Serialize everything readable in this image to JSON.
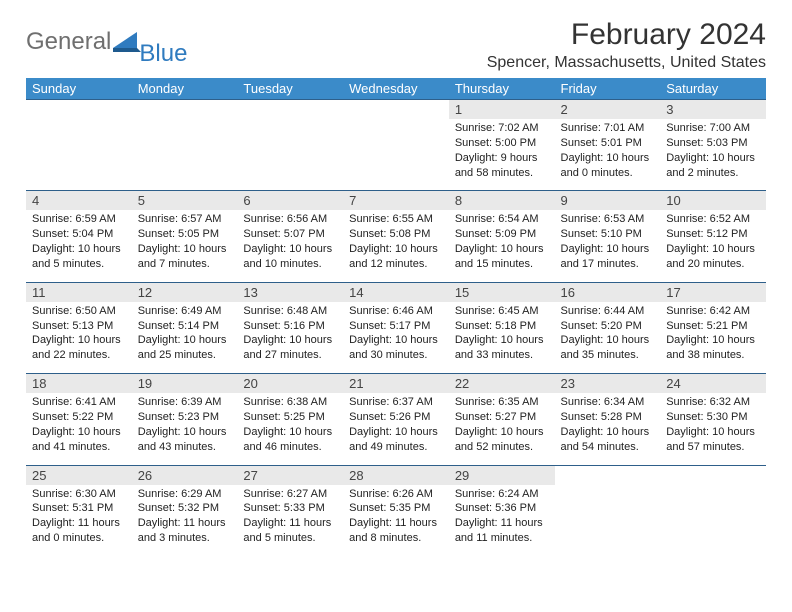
{
  "logo": {
    "part1": "General",
    "part2": "Blue"
  },
  "title": "February 2024",
  "location": "Spencer, Massachusetts, United States",
  "colors": {
    "header_bg": "#3b8bc9",
    "header_text": "#ffffff",
    "daynum_bg": "#e9e9e9",
    "border": "#2e5f8a",
    "logo_gray": "#6f6f6f",
    "logo_blue": "#2f7bbf"
  },
  "daysOfWeek": [
    "Sunday",
    "Monday",
    "Tuesday",
    "Wednesday",
    "Thursday",
    "Friday",
    "Saturday"
  ],
  "weeks": [
    [
      null,
      null,
      null,
      null,
      {
        "n": "1",
        "sunrise": "7:02 AM",
        "sunset": "5:00 PM",
        "daylight": "9 hours and 58 minutes."
      },
      {
        "n": "2",
        "sunrise": "7:01 AM",
        "sunset": "5:01 PM",
        "daylight": "10 hours and 0 minutes."
      },
      {
        "n": "3",
        "sunrise": "7:00 AM",
        "sunset": "5:03 PM",
        "daylight": "10 hours and 2 minutes."
      }
    ],
    [
      {
        "n": "4",
        "sunrise": "6:59 AM",
        "sunset": "5:04 PM",
        "daylight": "10 hours and 5 minutes."
      },
      {
        "n": "5",
        "sunrise": "6:57 AM",
        "sunset": "5:05 PM",
        "daylight": "10 hours and 7 minutes."
      },
      {
        "n": "6",
        "sunrise": "6:56 AM",
        "sunset": "5:07 PM",
        "daylight": "10 hours and 10 minutes."
      },
      {
        "n": "7",
        "sunrise": "6:55 AM",
        "sunset": "5:08 PM",
        "daylight": "10 hours and 12 minutes."
      },
      {
        "n": "8",
        "sunrise": "6:54 AM",
        "sunset": "5:09 PM",
        "daylight": "10 hours and 15 minutes."
      },
      {
        "n": "9",
        "sunrise": "6:53 AM",
        "sunset": "5:10 PM",
        "daylight": "10 hours and 17 minutes."
      },
      {
        "n": "10",
        "sunrise": "6:52 AM",
        "sunset": "5:12 PM",
        "daylight": "10 hours and 20 minutes."
      }
    ],
    [
      {
        "n": "11",
        "sunrise": "6:50 AM",
        "sunset": "5:13 PM",
        "daylight": "10 hours and 22 minutes."
      },
      {
        "n": "12",
        "sunrise": "6:49 AM",
        "sunset": "5:14 PM",
        "daylight": "10 hours and 25 minutes."
      },
      {
        "n": "13",
        "sunrise": "6:48 AM",
        "sunset": "5:16 PM",
        "daylight": "10 hours and 27 minutes."
      },
      {
        "n": "14",
        "sunrise": "6:46 AM",
        "sunset": "5:17 PM",
        "daylight": "10 hours and 30 minutes."
      },
      {
        "n": "15",
        "sunrise": "6:45 AM",
        "sunset": "5:18 PM",
        "daylight": "10 hours and 33 minutes."
      },
      {
        "n": "16",
        "sunrise": "6:44 AM",
        "sunset": "5:20 PM",
        "daylight": "10 hours and 35 minutes."
      },
      {
        "n": "17",
        "sunrise": "6:42 AM",
        "sunset": "5:21 PM",
        "daylight": "10 hours and 38 minutes."
      }
    ],
    [
      {
        "n": "18",
        "sunrise": "6:41 AM",
        "sunset": "5:22 PM",
        "daylight": "10 hours and 41 minutes."
      },
      {
        "n": "19",
        "sunrise": "6:39 AM",
        "sunset": "5:23 PM",
        "daylight": "10 hours and 43 minutes."
      },
      {
        "n": "20",
        "sunrise": "6:38 AM",
        "sunset": "5:25 PM",
        "daylight": "10 hours and 46 minutes."
      },
      {
        "n": "21",
        "sunrise": "6:37 AM",
        "sunset": "5:26 PM",
        "daylight": "10 hours and 49 minutes."
      },
      {
        "n": "22",
        "sunrise": "6:35 AM",
        "sunset": "5:27 PM",
        "daylight": "10 hours and 52 minutes."
      },
      {
        "n": "23",
        "sunrise": "6:34 AM",
        "sunset": "5:28 PM",
        "daylight": "10 hours and 54 minutes."
      },
      {
        "n": "24",
        "sunrise": "6:32 AM",
        "sunset": "5:30 PM",
        "daylight": "10 hours and 57 minutes."
      }
    ],
    [
      {
        "n": "25",
        "sunrise": "6:30 AM",
        "sunset": "5:31 PM",
        "daylight": "11 hours and 0 minutes."
      },
      {
        "n": "26",
        "sunrise": "6:29 AM",
        "sunset": "5:32 PM",
        "daylight": "11 hours and 3 minutes."
      },
      {
        "n": "27",
        "sunrise": "6:27 AM",
        "sunset": "5:33 PM",
        "daylight": "11 hours and 5 minutes."
      },
      {
        "n": "28",
        "sunrise": "6:26 AM",
        "sunset": "5:35 PM",
        "daylight": "11 hours and 8 minutes."
      },
      {
        "n": "29",
        "sunrise": "6:24 AM",
        "sunset": "5:36 PM",
        "daylight": "11 hours and 11 minutes."
      },
      null,
      null
    ]
  ],
  "labels": {
    "sunrise": "Sunrise: ",
    "sunset": "Sunset: ",
    "daylight": "Daylight: "
  }
}
